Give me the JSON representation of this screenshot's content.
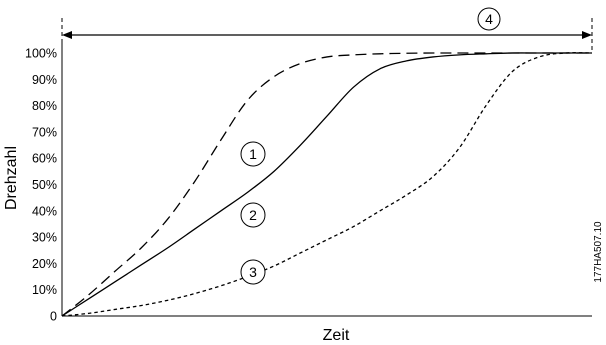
{
  "chart_data": {
    "type": "line",
    "xlabel": "Zeit",
    "ylabel": "Drehzahl",
    "ylim": [
      0,
      100
    ],
    "xlim": [
      0,
      100
    ],
    "grid": false,
    "y_ticks": [
      "0",
      "10%",
      "20%",
      "30%",
      "40%",
      "50%",
      "60%",
      "70%",
      "80%",
      "90%",
      "100%"
    ],
    "series": [
      {
        "callout": "1",
        "style": "long-dash",
        "x": [
          0,
          5,
          10,
          15,
          20,
          25,
          30,
          35,
          40,
          45,
          50,
          55,
          60,
          65,
          70,
          75,
          80,
          85,
          90,
          95,
          100
        ],
        "y": [
          0,
          8,
          17,
          26,
          37,
          51,
          67,
          82,
          91,
          96,
          98.5,
          99.3,
          99.7,
          99.9,
          100,
          100,
          100,
          100,
          100,
          100,
          100
        ]
      },
      {
        "callout": "2",
        "style": "solid",
        "x": [
          0,
          5,
          10,
          15,
          20,
          25,
          30,
          35,
          40,
          45,
          50,
          55,
          60,
          65,
          70,
          75,
          80,
          85,
          90,
          95,
          100
        ],
        "y": [
          0,
          6.5,
          13,
          19.5,
          26,
          33,
          40,
          47,
          55,
          65,
          76,
          87,
          94,
          97,
          98.5,
          99.3,
          99.7,
          100,
          100,
          100,
          100
        ]
      },
      {
        "callout": "3",
        "style": "short-dash",
        "x": [
          0,
          5,
          10,
          15,
          20,
          25,
          30,
          35,
          40,
          45,
          50,
          55,
          60,
          65,
          70,
          75,
          80,
          85,
          90,
          95,
          100
        ],
        "y": [
          0,
          1,
          2.5,
          4,
          6,
          8.5,
          11.5,
          15,
          19,
          24,
          29,
          34,
          40,
          46,
          53,
          64,
          80,
          93,
          98.5,
          100,
          100
        ]
      }
    ],
    "annotations": [
      "1",
      "2",
      "3",
      "4"
    ],
    "image_code": "177HA507.10",
    "colors": {
      "line": "#000000",
      "background": "#ffffff"
    }
  }
}
